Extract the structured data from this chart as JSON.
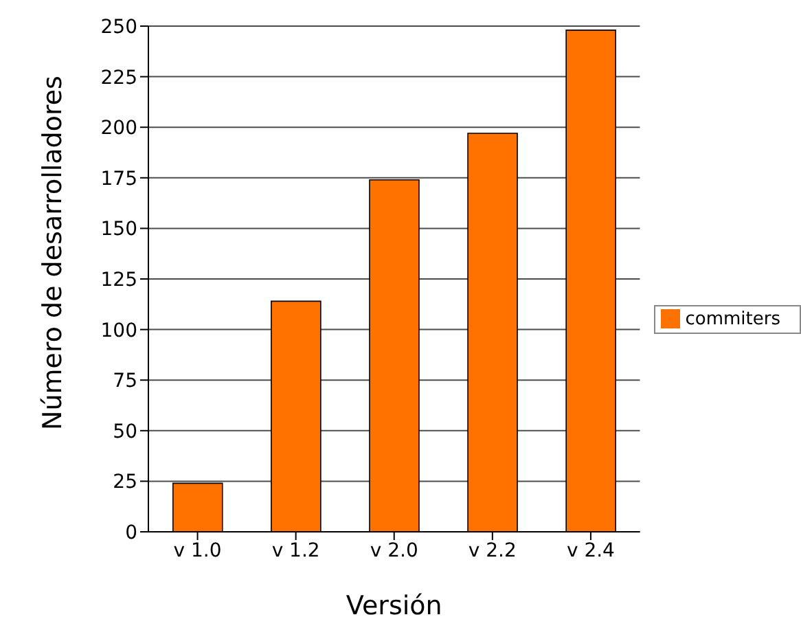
{
  "chart_data": {
    "type": "bar",
    "xlabel": "Versión",
    "ylabel": "Número de desarrolladores",
    "categories": [
      "v 1.0",
      "v 1.2",
      "v 2.0",
      "v 2.2",
      "v 2.4"
    ],
    "series": [
      {
        "name": "commiters",
        "color": "#ff7200",
        "values": [
          24,
          114,
          174,
          197,
          248
        ]
      }
    ],
    "ylim": [
      0,
      250
    ],
    "yticks": [
      0,
      25,
      50,
      75,
      100,
      125,
      150,
      175,
      200,
      225,
      250
    ],
    "grid": "y",
    "legend": "right"
  }
}
